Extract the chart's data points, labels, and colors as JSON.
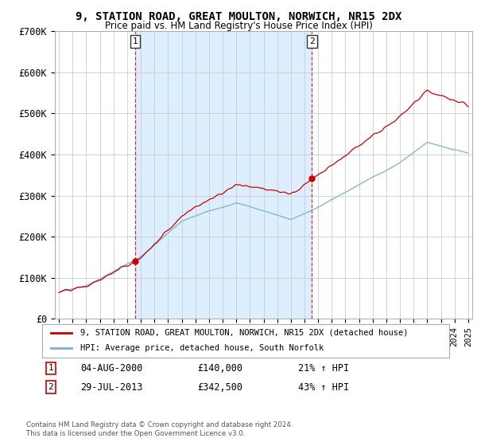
{
  "title": "9, STATION ROAD, GREAT MOULTON, NORWICH, NR15 2DX",
  "subtitle": "Price paid vs. HM Land Registry's House Price Index (HPI)",
  "legend_line1": "9, STATION ROAD, GREAT MOULTON, NORWICH, NR15 2DX (detached house)",
  "legend_line2": "HPI: Average price, detached house, South Norfolk",
  "ann1_date": "04-AUG-2000",
  "ann1_price": "£140,000",
  "ann1_pct": "21% ↑ HPI",
  "ann2_date": "29-JUL-2013",
  "ann2_price": "£342,500",
  "ann2_pct": "43% ↑ HPI",
  "footer": "Contains HM Land Registry data © Crown copyright and database right 2024.\nThis data is licensed under the Open Government Licence v3.0.",
  "vline1_x": 2000.6,
  "vline2_x": 2013.55,
  "sale1_y": 140000,
  "sale2_y": 342500,
  "ylim": [
    0,
    700000
  ],
  "xlim_start": 1994.7,
  "xlim_end": 2025.3,
  "red_color": "#cc0000",
  "blue_color": "#7ab0d4",
  "shade_color": "#ddeeff",
  "background_color": "#ffffff",
  "grid_color": "#cccccc"
}
